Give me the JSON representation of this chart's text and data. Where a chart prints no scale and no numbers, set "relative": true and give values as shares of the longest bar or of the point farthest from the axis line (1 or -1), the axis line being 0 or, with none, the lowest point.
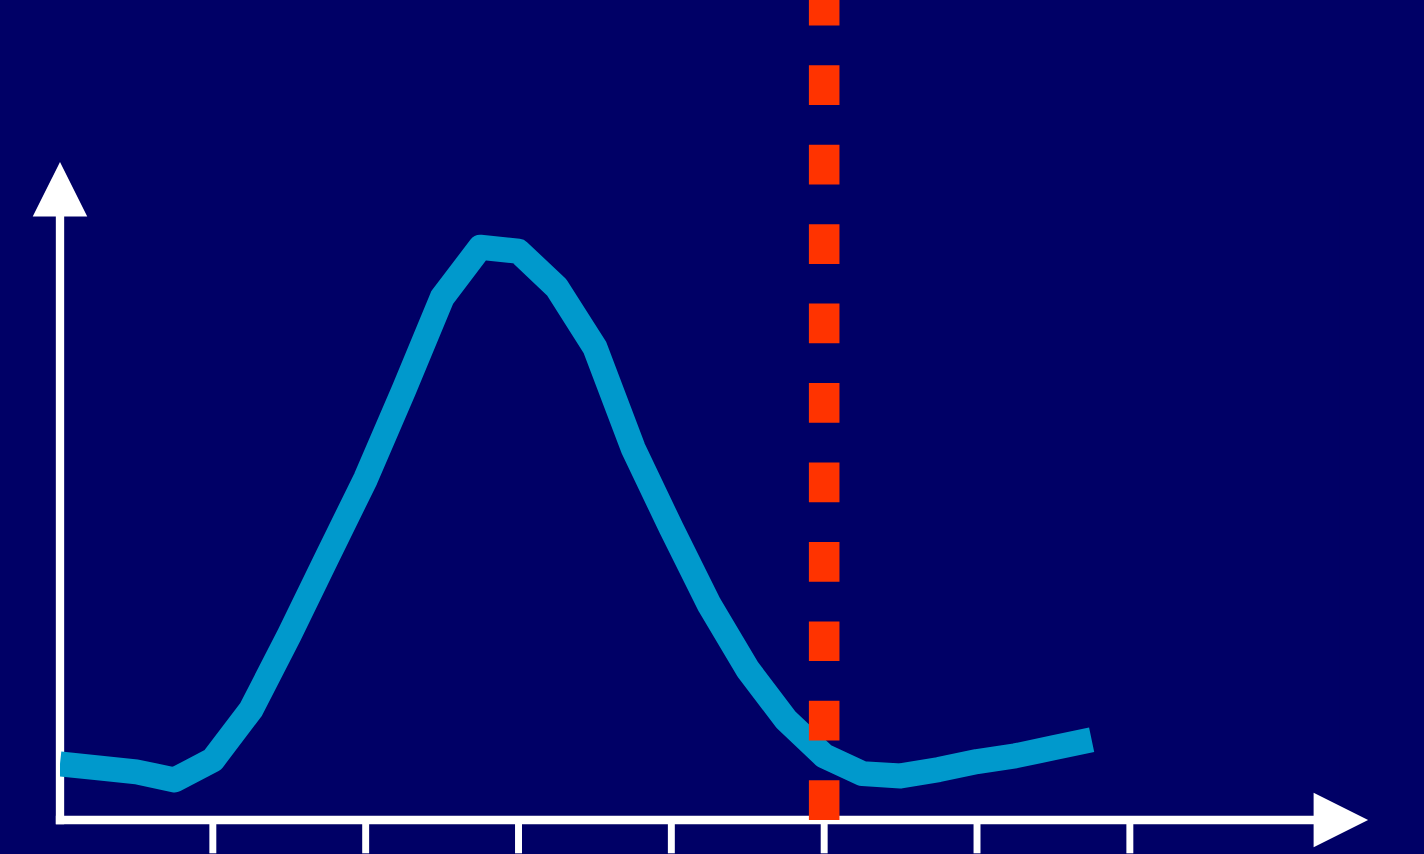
{
  "chart_data": {
    "type": "line",
    "relative": true,
    "categories": [
      null,
      null,
      null,
      null,
      null,
      null,
      null,
      null,
      null,
      null,
      null,
      null,
      null,
      null,
      null,
      null,
      null,
      null,
      null,
      null,
      null,
      null,
      null,
      null,
      null,
      null,
      null,
      null
    ],
    "series": [
      {
        "color": "#0099cc",
        "values": [
          0.098,
          0.091,
          0.084,
          0.07,
          0.105,
          0.193,
          0.323,
          0.46,
          0.596,
          0.751,
          0.912,
          1.0,
          0.993,
          0.93,
          0.825,
          0.649,
          0.509,
          0.375,
          0.263,
          0.175,
          0.112,
          0.081,
          0.077,
          0.088,
          0.102,
          0.112,
          0.126,
          0.14
        ]
      }
    ],
    "grid": false,
    "legend": false,
    "marker": "none",
    "line_style": "solid"
  }
}
